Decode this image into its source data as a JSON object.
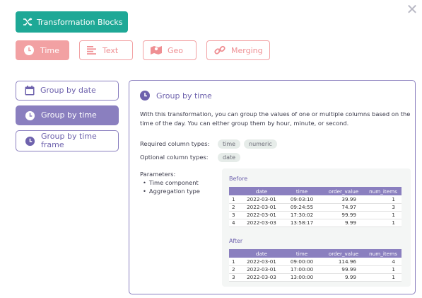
{
  "header": {
    "button_label": "Transformation Blocks"
  },
  "tabs": [
    {
      "label": "Time",
      "icon": "clock-icon",
      "active": true
    },
    {
      "label": "Text",
      "icon": "text-lines-icon",
      "active": false
    },
    {
      "label": "Geo",
      "icon": "map-icon",
      "active": false
    },
    {
      "label": "Merging",
      "icon": "link-icon",
      "active": false
    }
  ],
  "sidebar": {
    "items": [
      {
        "label": "Group by date",
        "icon": "calendar-icon",
        "active": false
      },
      {
        "label": "Group by time",
        "icon": "clock-icon",
        "active": true
      },
      {
        "label": "Group by time frame",
        "icon": "clock-icon",
        "active": false
      }
    ]
  },
  "panel": {
    "title": "Group by time",
    "description": "With this transformation, you can group the values of one or multiple columns based on the time of the day. You can either group them by hour, minute, or second.",
    "required_label": "Required column types:",
    "required_types": [
      "time",
      "numeric"
    ],
    "optional_label": "Optional column types:",
    "optional_types": [
      "date"
    ],
    "parameters_label": "Parameters:",
    "parameters": [
      "Time component",
      "Aggregation type"
    ],
    "before": {
      "title": "Before",
      "headers": [
        "",
        "date",
        "time",
        "order_value",
        "num_items"
      ],
      "rows": [
        [
          "1",
          "2022-03-01",
          "09:03:10",
          "39.99",
          "1"
        ],
        [
          "2",
          "2022-03-01",
          "09:24:55",
          "74.97",
          "3"
        ],
        [
          "3",
          "2022-03-01",
          "17:30:02",
          "99.99",
          "1"
        ],
        [
          "4",
          "2022-03-03",
          "13:58:17",
          "9.99",
          "1"
        ]
      ]
    },
    "after": {
      "title": "After",
      "headers": [
        "",
        "date",
        "time",
        "order_value",
        "num_items"
      ],
      "rows": [
        [
          "1",
          "2022-03-01",
          "09:00:00",
          "114.96",
          "4"
        ],
        [
          "2",
          "2022-03-01",
          "17:00:00",
          "99.99",
          "1"
        ],
        [
          "3",
          "2022-03-03",
          "13:00:00",
          "9.99",
          "1"
        ]
      ]
    }
  },
  "colors": {
    "teal": "#1ea896",
    "pink": "#f2a1a3",
    "purple": "#8a7fbf"
  }
}
